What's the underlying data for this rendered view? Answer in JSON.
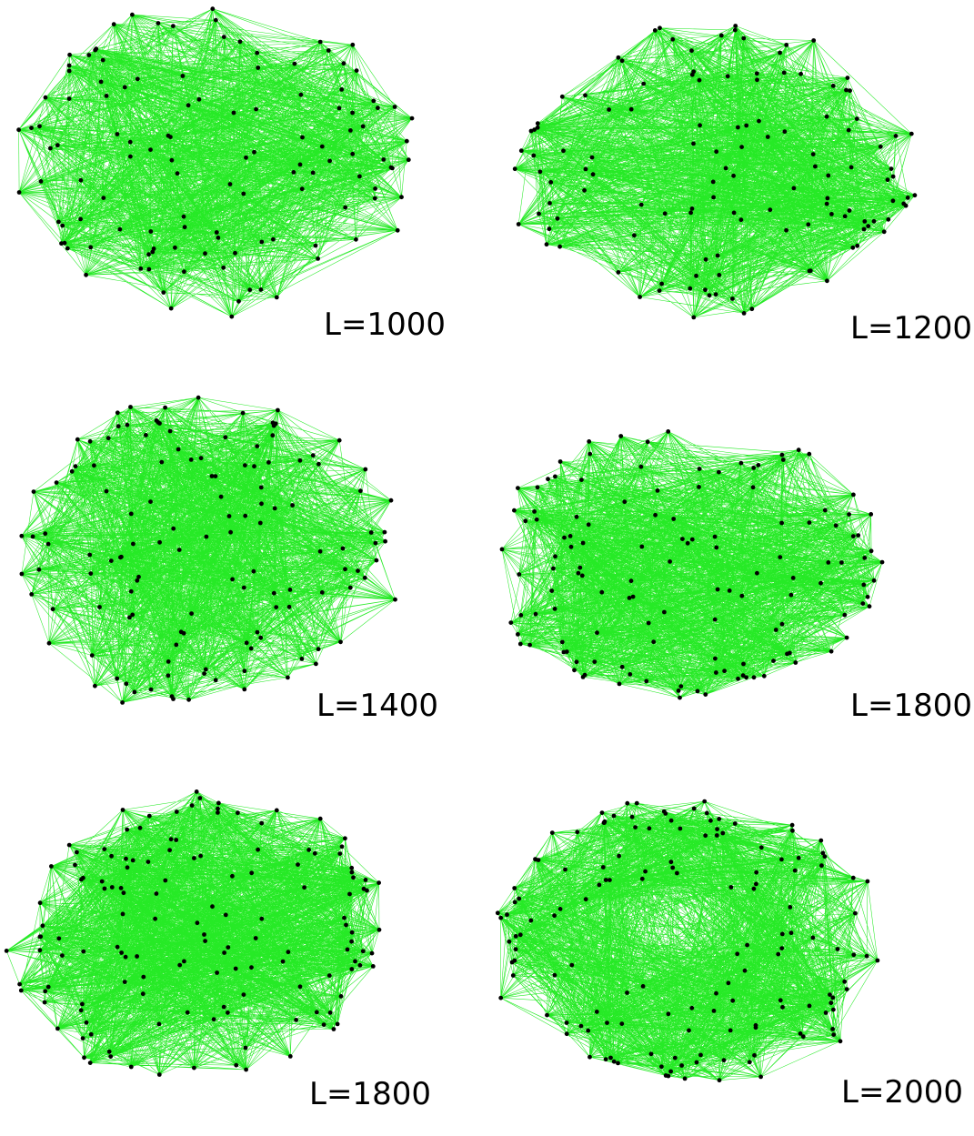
{
  "colors": {
    "edge": "#00e600",
    "node": "#000000",
    "background": "#ffffff"
  },
  "panels": [
    {
      "label": "L=1000"
    },
    {
      "label": "L=1200"
    },
    {
      "label": "L=1400"
    },
    {
      "label": "L=1800"
    },
    {
      "label": "L=1800"
    },
    {
      "label": "L=2000"
    }
  ]
}
